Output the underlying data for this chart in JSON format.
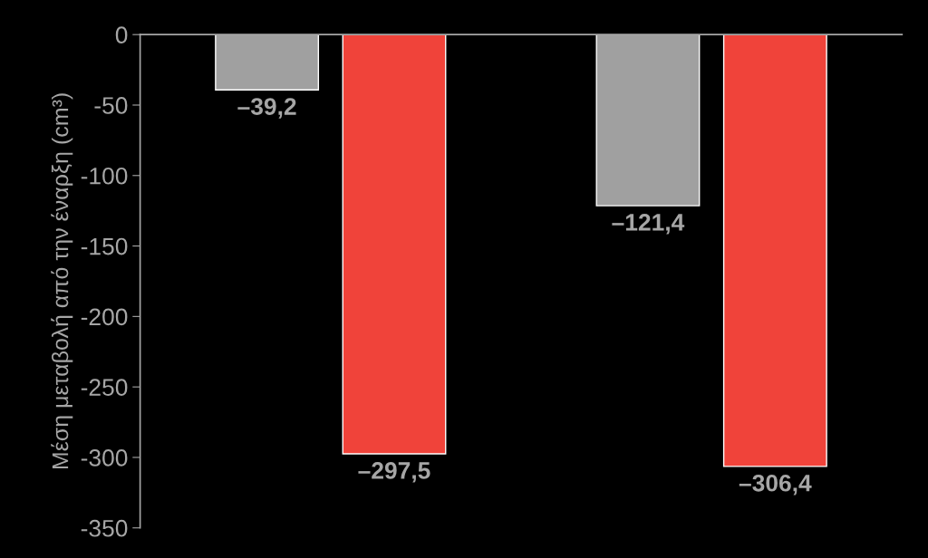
{
  "chart_data": {
    "type": "bar",
    "ylabel": "Μέση μεταβολή από την έναρξη (cm³)",
    "categories": [
      null,
      null
    ],
    "series": [
      {
        "color": "#a0a0a0",
        "values": [
          -39.2,
          -121.4
        ],
        "value_labels": [
          "–39,2",
          "–121,4"
        ]
      },
      {
        "color": "#f0433a",
        "values": [
          -297.5,
          -306.4
        ],
        "value_labels": [
          "–297,5",
          "–306,4"
        ]
      }
    ],
    "ylim": [
      -350,
      0
    ],
    "yticks": [
      -350,
      -300,
      -250,
      -200,
      -150,
      -100,
      -50,
      0
    ]
  }
}
